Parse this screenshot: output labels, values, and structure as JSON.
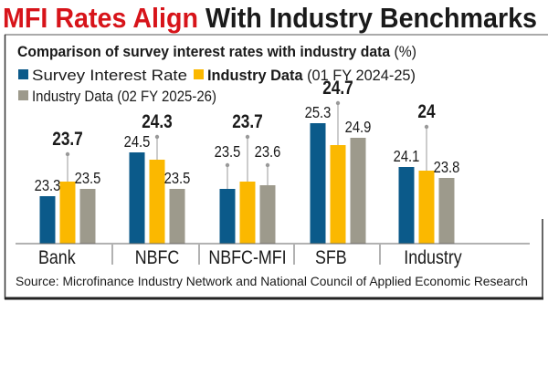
{
  "headline": {
    "part1": "MFI Rates Align",
    "part2": "With Industry Benchmarks"
  },
  "chart_data": {
    "type": "bar",
    "title": "Comparison of survey interest rates with industry data",
    "unit": "(%)",
    "categories": [
      "Bank",
      "NBFC",
      "NBFC-MFI",
      "SFB",
      "Industry"
    ],
    "series": [
      {
        "name": "Survey Interest Rate",
        "name_bold": "",
        "name_rest": "Survey Interest Rate",
        "color": "#0b5a8a",
        "values": [
          23.3,
          24.5,
          23.5,
          25.3,
          24.1
        ]
      },
      {
        "name": "Industry Data (01 FY 2024-25)",
        "name_bold": "Industry Data",
        "name_rest": " (01 FY 2024-25)",
        "color": "#fbb800",
        "values": [
          23.7,
          24.3,
          23.7,
          24.7,
          24
        ]
      },
      {
        "name": "Industry Data (02 FY 2025-26)",
        "name_bold": "",
        "name_rest": "Industry Data (02 FY 2025-26)",
        "color": "#9d9a8c",
        "values": [
          23.5,
          23.5,
          23.6,
          24.9,
          23.8
        ]
      }
    ],
    "grid": false,
    "legend": "top-left"
  },
  "source": "Source:  Microfinance Industry Network and National Council of Applied Economic Research",
  "colors": {
    "headline_red": "#d7141a",
    "text": "#1a1a1a"
  }
}
